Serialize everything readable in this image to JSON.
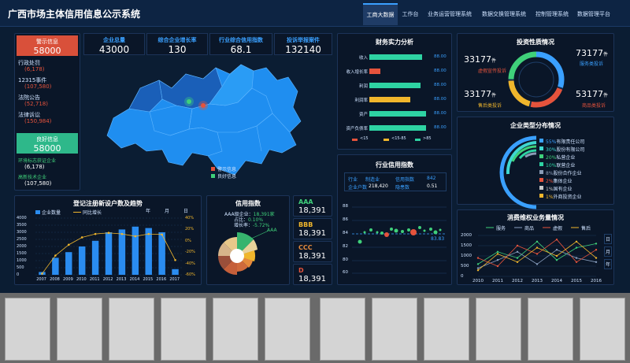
{
  "header": {
    "title": "广西市场主体信用信息公示系统",
    "nav": [
      "工商大数据",
      "工作台",
      "业务运营管理系统",
      "数据交换管理系统",
      "控制管理系统",
      "数据管理平台"
    ]
  },
  "kpis": [
    {
      "label": "企业总量",
      "value": "43000"
    },
    {
      "label": "综合企业增长率",
      "value": "130"
    },
    {
      "label": "行业综合信用指数",
      "value": "68.1"
    },
    {
      "label": "投诉举报案件",
      "value": "132140"
    }
  ],
  "warning": {
    "title": "警示信息",
    "value": "58000",
    "items": [
      {
        "label": "行政处罚",
        "value": "(6,178)"
      },
      {
        "label": "12315事件",
        "value": "(107,580)"
      },
      {
        "label": "法院公告",
        "value": "(52,718)"
      },
      {
        "label": "法律诉讼",
        "value": "(150,984)"
      }
    ]
  },
  "good": {
    "title": "良好信息",
    "value": "58000",
    "items": [
      {
        "label": "环境标志获证企业",
        "value": "(6,178)"
      },
      {
        "label": "高新技术企业",
        "value": "(107,580)"
      }
    ]
  },
  "map": {
    "legend": [
      "警示信息",
      "良好信息"
    ]
  },
  "finance": {
    "title": "财务实力分析",
    "rows": [
      {
        "label": "收入",
        "value": "88.00",
        "pct": 0.88,
        "color": "#2ed3a3"
      },
      {
        "label": "收入增长率",
        "value": "88.00",
        "pct": 0.18,
        "color": "#e5533c"
      },
      {
        "label": "利润",
        "value": "88.00",
        "pct": 0.86,
        "color": "#2ed3a3"
      },
      {
        "label": "利润率",
        "value": "88.00",
        "pct": 0.68,
        "color": "#f0b62c"
      },
      {
        "label": "资产",
        "value": "88.00",
        "pct": 0.95,
        "color": "#2ed3a3"
      },
      {
        "label": "资产负债率",
        "value": "88.00",
        "pct": 0.95,
        "color": "#2ed3a3"
      }
    ],
    "legend": [
      "<15",
      "<15-85",
      ">85"
    ]
  },
  "investment": {
    "title": "投资性质情况",
    "items": [
      {
        "value": "33177",
        "unit": "件",
        "label": "虚假宣传投诉",
        "color": "#e5533c"
      },
      {
        "value": "73177",
        "unit": "件",
        "label": "服务类投诉",
        "color": "#3aa0ff"
      },
      {
        "value": "33177",
        "unit": "件",
        "label": "售后类投诉",
        "color": "#f0b62c"
      },
      {
        "value": "53177",
        "unit": "件",
        "label": "商品类投诉",
        "color": "#e5533c"
      }
    ]
  },
  "enterprise_types": {
    "title": "企业类型分布情况",
    "items": [
      {
        "pct": "55%",
        "label": "有限责任公司",
        "color": "#3aa0ff"
      },
      {
        "pct": "30%",
        "label": "股份有限公司",
        "color": "#3fd7d0"
      },
      {
        "pct": "20%",
        "label": "私营企业",
        "color": "#3fd07a"
      },
      {
        "pct": "10%",
        "label": "联营企业",
        "color": "#2ed3a3"
      },
      {
        "pct": "8%",
        "label": "股份合作企业",
        "color": "#8a9bb5"
      },
      {
        "pct": "2%",
        "label": "集体企业",
        "color": "#e5533c"
      },
      {
        "pct": "1%",
        "label": "国有企业",
        "color": "#c9c9c9"
      },
      {
        "pct": "1%",
        "label": "外商投资企业",
        "color": "#f0b62c"
      }
    ]
  },
  "industry": {
    "title": "行业信用指数",
    "row1": [
      "行业",
      "制造业",
      "信用指数",
      "842"
    ],
    "row2": [
      "企业户数",
      "218,420",
      "隐患数",
      "0.51"
    ],
    "yticks": [
      "88",
      "86",
      "84",
      "82",
      "80",
      "60"
    ],
    "value_label": "83.83"
  },
  "registration": {
    "title": "登记注册新设户数及趋势",
    "legend": [
      "企业数量",
      "同比增长"
    ],
    "controls": [
      "年",
      "月",
      "日"
    ],
    "years": [
      "2007",
      "2008",
      "2009",
      "2010",
      "2011",
      "2012",
      "2013",
      "2014",
      "2015",
      "2016",
      "2017"
    ],
    "values": [
      200,
      1200,
      1600,
      2000,
      2400,
      3000,
      3200,
      3400,
      3300,
      3000,
      400
    ],
    "growth": [
      -58,
      -26,
      -7,
      6,
      12,
      14,
      12,
      8,
      12,
      11,
      -34
    ],
    "yticks": [
      "4000",
      "3500",
      "3000",
      "2500",
      "2000",
      "1500",
      "1000",
      "500",
      "0"
    ],
    "rticks": [
      "40%",
      "20%",
      "0%",
      "-20%",
      "-40%",
      "-60%"
    ]
  },
  "credit": {
    "title": "信用指数",
    "lines": [
      {
        "label": "AAA级企业：",
        "value": "18,391家"
      },
      {
        "label": "占比：",
        "value": "0.10%"
      },
      {
        "label": "增长率：",
        "value": "-5.72%"
      }
    ],
    "tag": "AAA",
    "grades": [
      {
        "label": "AAA",
        "value": "18,391",
        "color": "#3fd07a"
      },
      {
        "label": "BBB",
        "value": "18,391",
        "color": "#f0b62c"
      },
      {
        "label": "CCC",
        "value": "18,391",
        "color": "#e58a3c"
      },
      {
        "label": "D",
        "value": "18,391",
        "color": "#e5533c"
      }
    ]
  },
  "consumer": {
    "title": "消费维权业务量情况",
    "legend": [
      "服务",
      "商品",
      "虚假",
      "售后"
    ],
    "colors": [
      "#3fd07a",
      "#8aa0c0",
      "#e5533c",
      "#f0b62c"
    ],
    "years": [
      "2010",
      "2011",
      "2012",
      "2013",
      "2014",
      "2015",
      "2016"
    ],
    "yticks": [
      "2000",
      "1500",
      "1000",
      "500",
      "0"
    ],
    "controls": [
      "日",
      "月",
      "年"
    ],
    "series": [
      [
        600,
        1200,
        900,
        1700,
        800,
        1400,
        1600
      ],
      [
        400,
        800,
        1200,
        600,
        1300,
        900,
        700
      ],
      [
        900,
        500,
        1500,
        1100,
        1800,
        700,
        1300
      ],
      [
        300,
        1100,
        700,
        1400,
        1000,
        1700,
        900
      ]
    ]
  }
}
